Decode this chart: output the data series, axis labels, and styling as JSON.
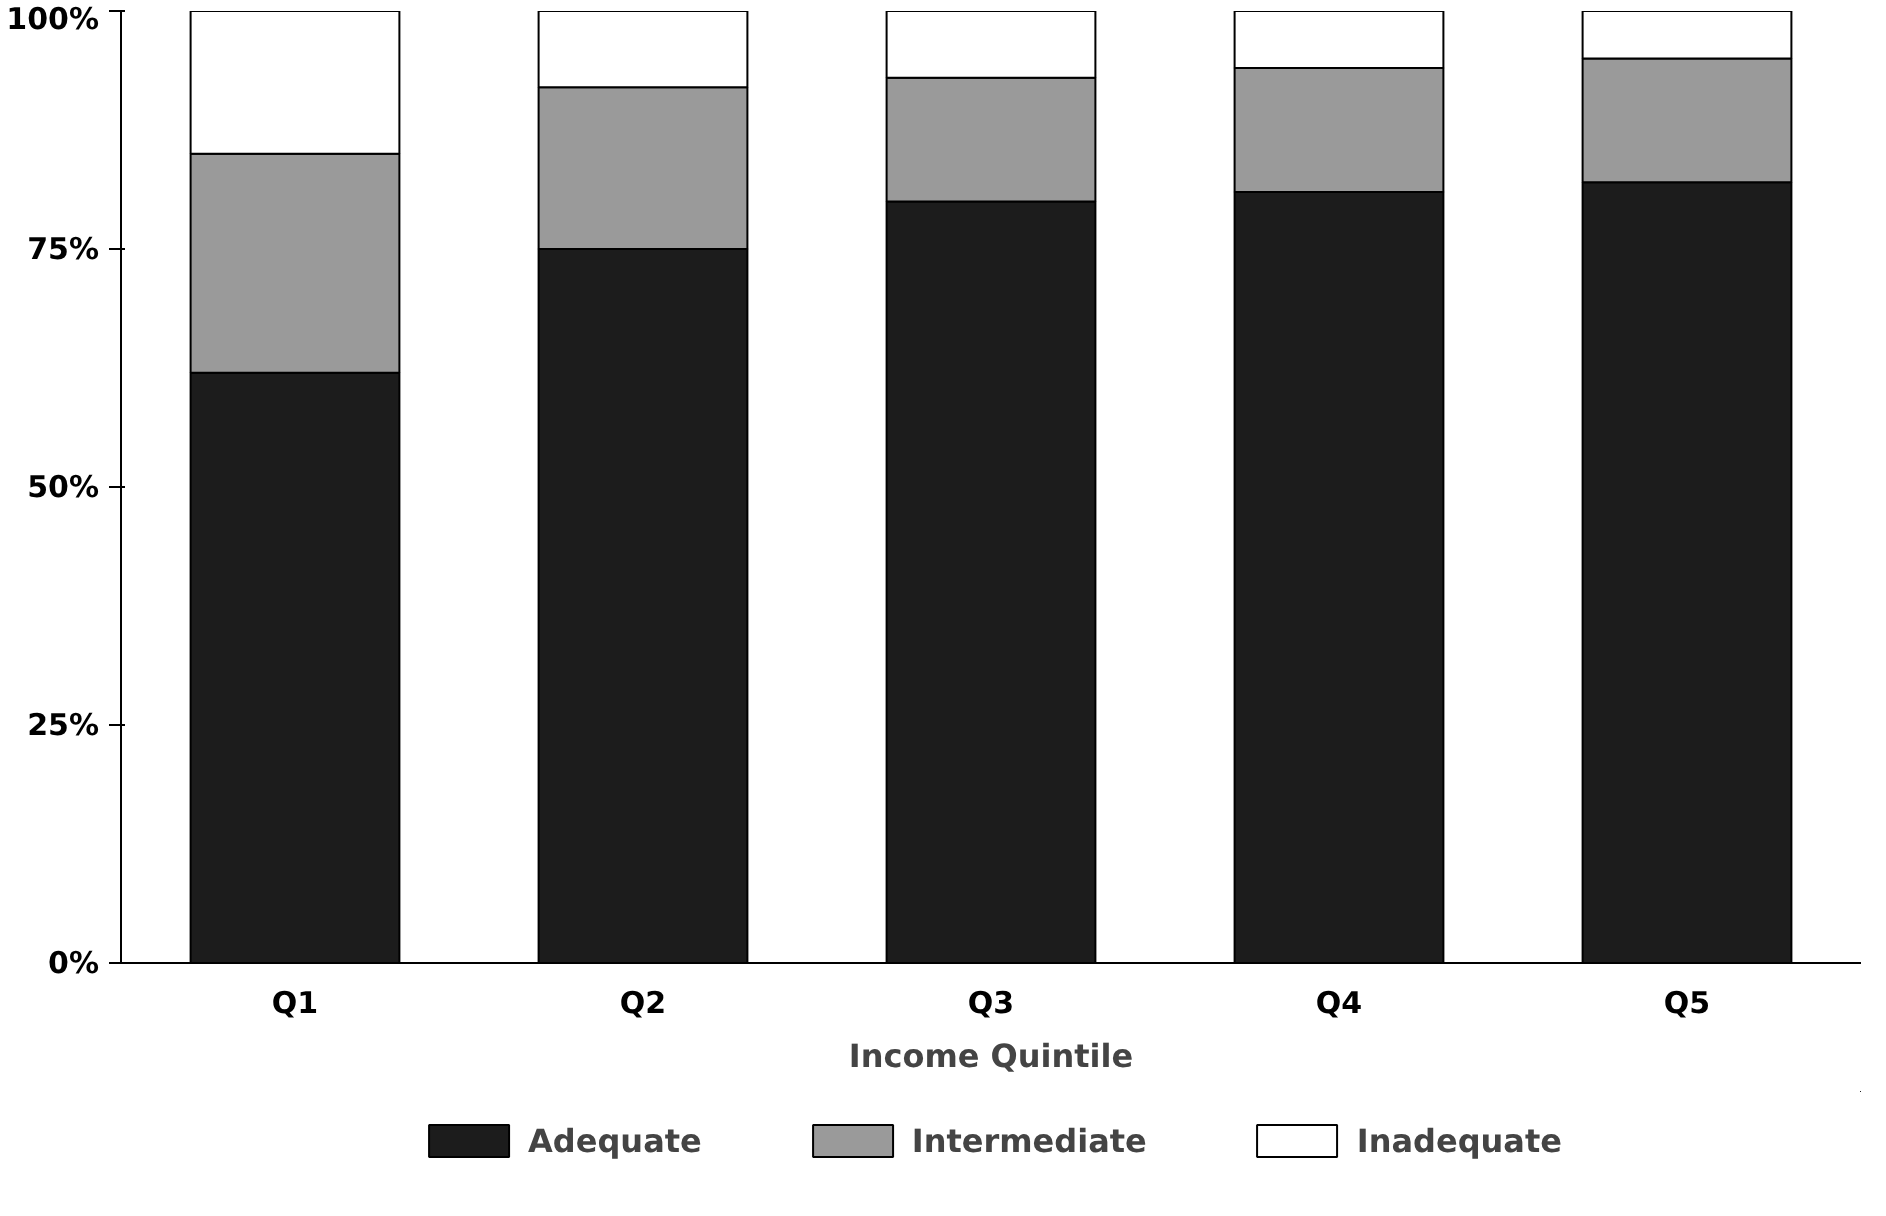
{
  "chart_data": {
    "type": "bar",
    "stacked": true,
    "xlabel": "Income Quintile",
    "categories": [
      "Q1",
      "Q2",
      "Q3",
      "Q4",
      "Q5"
    ],
    "series": [
      {
        "name": "Adequate",
        "color": "#1c1c1c",
        "values": [
          62,
          75,
          80,
          81,
          82
        ]
      },
      {
        "name": "Intermediate",
        "color": "#9a9a9a",
        "values": [
          23,
          17,
          13,
          13,
          13
        ]
      },
      {
        "name": "Inadequate",
        "color": "#ffffff",
        "values": [
          15,
          8,
          7,
          6,
          5
        ]
      }
    ],
    "ylim": [
      0,
      100
    ],
    "yticks": [
      {
        "value": 0,
        "label": "0%"
      },
      {
        "value": 25,
        "label": "25%"
      },
      {
        "value": 50,
        "label": "50%"
      },
      {
        "value": 75,
        "label": "75%"
      },
      {
        "value": 100,
        "label": "100%"
      }
    ],
    "grid": false,
    "legend": "bottom"
  }
}
